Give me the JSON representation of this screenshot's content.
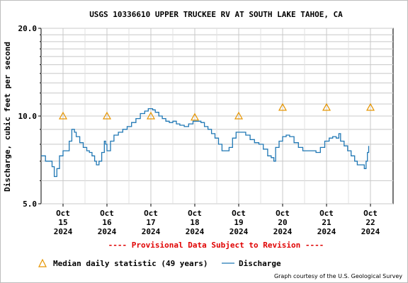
{
  "chart_data": {
    "type": "line",
    "title": "USGS 10336610 UPPER TRUCKEE RV AT SOUTH LAKE TAHOE, CA",
    "ylabel": "Discharge, cubic feet per second",
    "xlabel": "",
    "y_scale": "log",
    "ylim": [
      5.0,
      20.0
    ],
    "y_ticks": [
      {
        "value": 5.0,
        "label": "5.0"
      },
      {
        "value": 10.0,
        "label": "10.0"
      },
      {
        "value": 20.0,
        "label": "20.0"
      }
    ],
    "x_ticks": [
      {
        "day": 15,
        "line1": "Oct",
        "line2": "15",
        "line3": "2024"
      },
      {
        "day": 16,
        "line1": "Oct",
        "line2": "16",
        "line3": "2024"
      },
      {
        "day": 17,
        "line1": "Oct",
        "line2": "17",
        "line3": "2024"
      },
      {
        "day": 18,
        "line1": "Oct",
        "line2": "18",
        "line3": "2024"
      },
      {
        "day": 19,
        "line1": "Oct",
        "line2": "19",
        "line3": "2024"
      },
      {
        "day": 20,
        "line1": "Oct",
        "line2": "20",
        "line3": "2024"
      },
      {
        "day": 21,
        "line1": "Oct",
        "line2": "21",
        "line3": "2024"
      },
      {
        "day": 22,
        "line1": "Oct",
        "line2": "22",
        "line3": "2024"
      }
    ],
    "xlim": [
      14.5,
      22.55
    ],
    "grid": true,
    "series": [
      {
        "name": "Discharge",
        "color": "#1f77b4",
        "points": [
          [
            14.5,
            7.3
          ],
          [
            14.55,
            7.3
          ],
          [
            14.6,
            7.0
          ],
          [
            14.7,
            7.0
          ],
          [
            14.75,
            6.7
          ],
          [
            14.8,
            6.2
          ],
          [
            14.86,
            6.6
          ],
          [
            14.92,
            7.3
          ],
          [
            15.0,
            7.6
          ],
          [
            15.08,
            7.6
          ],
          [
            15.14,
            8.2
          ],
          [
            15.2,
            9.0
          ],
          [
            15.26,
            8.8
          ],
          [
            15.3,
            8.5
          ],
          [
            15.38,
            8.1
          ],
          [
            15.46,
            7.8
          ],
          [
            15.54,
            7.6
          ],
          [
            15.6,
            7.5
          ],
          [
            15.66,
            7.3
          ],
          [
            15.72,
            7.0
          ],
          [
            15.76,
            6.8
          ],
          [
            15.82,
            7.0
          ],
          [
            15.88,
            7.5
          ],
          [
            15.94,
            8.2
          ],
          [
            15.97,
            8.0
          ],
          [
            16.0,
            7.6
          ],
          [
            16.08,
            8.2
          ],
          [
            16.16,
            8.6
          ],
          [
            16.26,
            8.8
          ],
          [
            16.36,
            9.0
          ],
          [
            16.46,
            9.2
          ],
          [
            16.56,
            9.5
          ],
          [
            16.66,
            9.8
          ],
          [
            16.76,
            10.2
          ],
          [
            16.86,
            10.4
          ],
          [
            16.94,
            10.6
          ],
          [
            17.04,
            10.5
          ],
          [
            17.1,
            10.3
          ],
          [
            17.18,
            10.0
          ],
          [
            17.26,
            9.8
          ],
          [
            17.34,
            9.6
          ],
          [
            17.42,
            9.5
          ],
          [
            17.5,
            9.6
          ],
          [
            17.58,
            9.4
          ],
          [
            17.66,
            9.3
          ],
          [
            17.76,
            9.2
          ],
          [
            17.86,
            9.4
          ],
          [
            17.96,
            9.6
          ],
          [
            18.04,
            9.6
          ],
          [
            18.14,
            9.5
          ],
          [
            18.22,
            9.2
          ],
          [
            18.3,
            9.0
          ],
          [
            18.38,
            8.7
          ],
          [
            18.46,
            8.4
          ],
          [
            18.54,
            8.0
          ],
          [
            18.62,
            7.6
          ],
          [
            18.7,
            7.6
          ],
          [
            18.78,
            7.8
          ],
          [
            18.86,
            8.4
          ],
          [
            18.94,
            8.8
          ],
          [
            19.0,
            8.8
          ],
          [
            19.08,
            8.8
          ],
          [
            19.16,
            8.6
          ],
          [
            19.26,
            8.3
          ],
          [
            19.36,
            8.1
          ],
          [
            19.46,
            8.0
          ],
          [
            19.56,
            7.7
          ],
          [
            19.66,
            7.3
          ],
          [
            19.74,
            7.2
          ],
          [
            19.8,
            7.0
          ],
          [
            19.84,
            7.8
          ],
          [
            19.92,
            8.2
          ],
          [
            20.0,
            8.5
          ],
          [
            20.08,
            8.6
          ],
          [
            20.16,
            8.5
          ],
          [
            20.26,
            8.1
          ],
          [
            20.36,
            7.8
          ],
          [
            20.46,
            7.6
          ],
          [
            20.56,
            7.6
          ],
          [
            20.66,
            7.6
          ],
          [
            20.76,
            7.5
          ],
          [
            20.86,
            7.8
          ],
          [
            20.96,
            8.2
          ],
          [
            21.06,
            8.4
          ],
          [
            21.14,
            8.5
          ],
          [
            21.22,
            8.4
          ],
          [
            21.28,
            8.7
          ],
          [
            21.32,
            8.2
          ],
          [
            21.4,
            7.9
          ],
          [
            21.48,
            7.6
          ],
          [
            21.56,
            7.3
          ],
          [
            21.64,
            7.0
          ],
          [
            21.7,
            6.8
          ],
          [
            21.76,
            6.8
          ],
          [
            21.82,
            6.8
          ],
          [
            21.86,
            6.6
          ],
          [
            21.9,
            7.0
          ],
          [
            21.93,
            7.5
          ],
          [
            21.96,
            7.9
          ]
        ]
      },
      {
        "name": "Median daily statistic (49 years)",
        "marker": "triangle",
        "color": "#e69500",
        "points": [
          [
            15.0,
            10.0
          ],
          [
            16.0,
            10.0
          ],
          [
            17.0,
            10.0
          ],
          [
            18.0,
            9.9
          ],
          [
            19.0,
            10.0
          ],
          [
            20.0,
            10.7
          ],
          [
            21.0,
            10.7
          ],
          [
            22.0,
            10.7
          ]
        ]
      }
    ],
    "legend": {
      "position": "bottom-left",
      "median_label": "Median daily statistic (49 years)",
      "discharge_label": "Discharge"
    },
    "provisional_note": "---- Provisional Data Subject to Revision ----",
    "provisional_color": "#e00000",
    "credit": "Graph courtesy of the U.S. Geological Survey"
  }
}
